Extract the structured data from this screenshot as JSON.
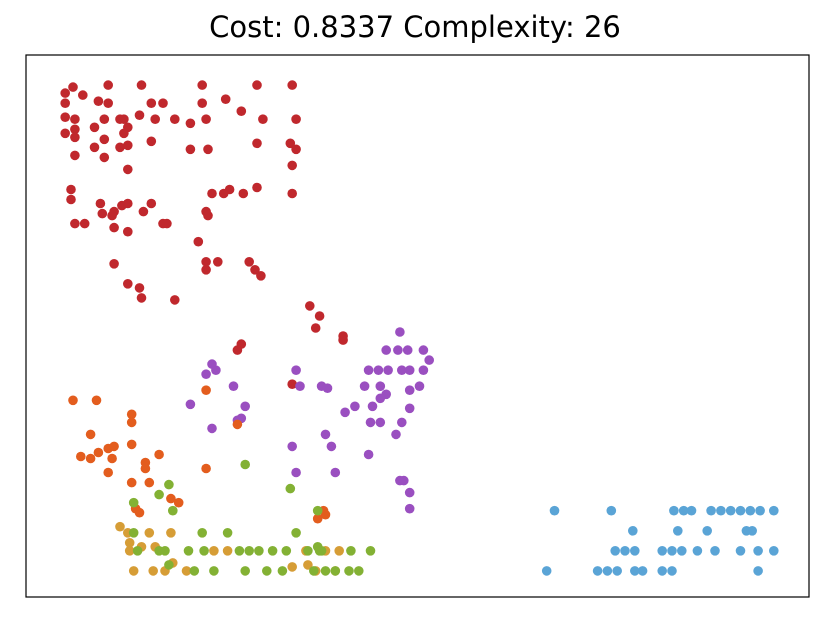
{
  "title": "Cost: 0.8337 Complexity: 26",
  "chart_data": {
    "type": "scatter",
    "title": "Cost: 0.8337 Complexity: 26",
    "xlabel": "",
    "ylabel": "",
    "axes_ticks": "none",
    "xlim": [
      0,
      40
    ],
    "ylim": [
      0,
      27
    ],
    "colors": {
      "red": "#c0282d",
      "purple": "#9a4fc0",
      "orange": "#e35d1e",
      "gold": "#d69d36",
      "green": "#83b134",
      "blue": "#5aa4d6"
    },
    "series": [
      {
        "color_key": "red",
        "points": [
          [
            2,
            25.1
          ],
          [
            2,
            24.6
          ],
          [
            2.4,
            25.4
          ],
          [
            2.9,
            25
          ],
          [
            3.7,
            24.7
          ],
          [
            4.2,
            25.5
          ],
          [
            4.2,
            24.6
          ],
          [
            5.9,
            25.5
          ],
          [
            6.4,
            24.6
          ],
          [
            7,
            24.6
          ],
          [
            9,
            25.5
          ],
          [
            9,
            24.6
          ],
          [
            10.2,
            24.8
          ],
          [
            11.8,
            25.5
          ],
          [
            13.6,
            25.5
          ],
          [
            2,
            23.9
          ],
          [
            2.5,
            23.8
          ],
          [
            4,
            23.8
          ],
          [
            4.8,
            23.8
          ],
          [
            5,
            23.8
          ],
          [
            5.2,
            23.4
          ],
          [
            5.8,
            24
          ],
          [
            6.6,
            23.8
          ],
          [
            7.6,
            23.8
          ],
          [
            8.4,
            23.6
          ],
          [
            9.2,
            23.8
          ],
          [
            11,
            24.2
          ],
          [
            12.1,
            23.8
          ],
          [
            13.8,
            23.8
          ],
          [
            2,
            23.1
          ],
          [
            2.5,
            23.3
          ],
          [
            2.5,
            22.9
          ],
          [
            3.5,
            23.4
          ],
          [
            4,
            22.8
          ],
          [
            5,
            23.1
          ],
          [
            5.2,
            22.5
          ],
          [
            6.4,
            22.7
          ],
          [
            8.4,
            22.3
          ],
          [
            9.3,
            22.3
          ],
          [
            11.8,
            22.6
          ],
          [
            13.5,
            22.6
          ],
          [
            13.8,
            22.3
          ],
          [
            2.5,
            22
          ],
          [
            3.5,
            22.4
          ],
          [
            4,
            21.9
          ],
          [
            4.8,
            22.4
          ],
          [
            5.2,
            21.3
          ],
          [
            13.6,
            21.5
          ],
          [
            2.3,
            20.3
          ],
          [
            2.3,
            19.8
          ],
          [
            3.8,
            19.6
          ],
          [
            4.5,
            19.2
          ],
          [
            4.9,
            19.5
          ],
          [
            5.2,
            19.6
          ],
          [
            6,
            19.2
          ],
          [
            6.4,
            19.6
          ],
          [
            9.2,
            19.2
          ],
          [
            9.3,
            19
          ],
          [
            10.4,
            20.3
          ],
          [
            11.1,
            20.1
          ],
          [
            11.8,
            20.4
          ],
          [
            13.6,
            20.1
          ],
          [
            3,
            18.6
          ],
          [
            3.9,
            19.1
          ],
          [
            4.4,
            19
          ],
          [
            4.5,
            18.4
          ],
          [
            5.2,
            18.2
          ],
          [
            2.5,
            18.6
          ],
          [
            7,
            18.6
          ],
          [
            7.2,
            18.6
          ],
          [
            9.5,
            20.1
          ],
          [
            10.1,
            20.1
          ],
          [
            8.8,
            17.7
          ],
          [
            9.2,
            16.7
          ],
          [
            9.8,
            16.7
          ],
          [
            9.2,
            16.3
          ],
          [
            11.4,
            16.7
          ],
          [
            11.7,
            16.3
          ],
          [
            12,
            16
          ],
          [
            4.5,
            16.6
          ],
          [
            5.2,
            15.6
          ],
          [
            5.8,
            15.4
          ],
          [
            5.9,
            14.9
          ],
          [
            7.6,
            14.8
          ],
          [
            14.5,
            14.5
          ],
          [
            15,
            14
          ],
          [
            14.8,
            13.4
          ],
          [
            16.2,
            13
          ],
          [
            16.2,
            12.8
          ],
          [
            11,
            12.6
          ],
          [
            10.8,
            12.3
          ],
          [
            13.6,
            10.6
          ]
        ]
      },
      {
        "color_key": "purple",
        "points": [
          [
            19.1,
            13.2
          ],
          [
            18.4,
            12.3
          ],
          [
            19,
            12.3
          ],
          [
            19.5,
            12.3
          ],
          [
            20.3,
            12.3
          ],
          [
            20.6,
            11.8
          ],
          [
            9.5,
            11.6
          ],
          [
            9.7,
            11.3
          ],
          [
            13.8,
            11.3
          ],
          [
            17.5,
            11.3
          ],
          [
            18,
            11.3
          ],
          [
            18.5,
            11.3
          ],
          [
            19.2,
            11.3
          ],
          [
            19.6,
            11.3
          ],
          [
            20.3,
            11.3
          ],
          [
            9.2,
            11.1
          ],
          [
            10.6,
            10.5
          ],
          [
            15.1,
            10.5
          ],
          [
            14,
            10.5
          ],
          [
            15.4,
            10.4
          ],
          [
            17.3,
            10.5
          ],
          [
            18.1,
            10.5
          ],
          [
            18.4,
            10.1
          ],
          [
            19.6,
            10.3
          ],
          [
            20.1,
            10.5
          ],
          [
            18.1,
            9.9
          ],
          [
            8.4,
            9.6
          ],
          [
            11.2,
            9.5
          ],
          [
            16.3,
            9.2
          ],
          [
            16.8,
            9.5
          ],
          [
            17.7,
            9.5
          ],
          [
            19.6,
            9.4
          ],
          [
            11,
            8.9
          ],
          [
            17.6,
            8.7
          ],
          [
            18.1,
            8.7
          ],
          [
            19.2,
            8.7
          ],
          [
            15.3,
            8.1
          ],
          [
            18.9,
            8.1
          ],
          [
            9.5,
            8.4
          ],
          [
            10.8,
            8.8
          ],
          [
            13.6,
            7.5
          ],
          [
            15.6,
            7.5
          ],
          [
            17.5,
            7.1
          ],
          [
            13.8,
            6.2
          ],
          [
            15.8,
            6.2
          ],
          [
            19.1,
            5.8
          ],
          [
            19.3,
            5.8
          ],
          [
            19.6,
            5.2
          ],
          [
            19.6,
            4.4
          ]
        ]
      },
      {
        "color_key": "orange",
        "points": [
          [
            2.4,
            9.8
          ],
          [
            3.6,
            9.8
          ],
          [
            5.4,
            9.1
          ],
          [
            5.4,
            8.7
          ],
          [
            3.3,
            8.1
          ],
          [
            2.8,
            7
          ],
          [
            3.7,
            7.2
          ],
          [
            4.2,
            7.4
          ],
          [
            4.5,
            7.5
          ],
          [
            5.4,
            7.6
          ],
          [
            3.3,
            6.9
          ],
          [
            4.4,
            6.9
          ],
          [
            6.1,
            6.7
          ],
          [
            6.1,
            6.4
          ],
          [
            6.8,
            7.1
          ],
          [
            9.2,
            10.3
          ],
          [
            9.2,
            6.4
          ],
          [
            10.8,
            8.6
          ],
          [
            5.4,
            5.7
          ],
          [
            6.3,
            5.7
          ],
          [
            7.4,
            4.9
          ],
          [
            7.8,
            4.7
          ],
          [
            4.2,
            6.2
          ],
          [
            5.6,
            4.4
          ],
          [
            5.8,
            4.2
          ],
          [
            15.2,
            4.3
          ],
          [
            15.3,
            4.1
          ],
          [
            14.9,
            3.9
          ]
        ]
      },
      {
        "color_key": "gold",
        "points": [
          [
            4.8,
            3.5
          ],
          [
            5.2,
            3.2
          ],
          [
            6.3,
            3.2
          ],
          [
            7.4,
            3.2
          ],
          [
            5.3,
            2.7
          ],
          [
            5.3,
            2.3
          ],
          [
            5.9,
            2.5
          ],
          [
            6.6,
            2.5
          ],
          [
            9.6,
            2.3
          ],
          [
            10.3,
            2.3
          ],
          [
            14.3,
            2.3
          ],
          [
            16,
            2.3
          ],
          [
            15.3,
            2.3
          ],
          [
            14.4,
            1.6
          ],
          [
            7.5,
            1.7
          ],
          [
            8.2,
            1.3
          ],
          [
            5.5,
            1.3
          ],
          [
            6.5,
            1.3
          ],
          [
            7.1,
            1.3
          ],
          [
            14.8,
            1.3
          ],
          [
            13.6,
            1.5
          ],
          [
            15.8,
            1.3
          ]
        ]
      },
      {
        "color_key": "green",
        "points": [
          [
            11.2,
            6.6
          ],
          [
            7.3,
            5.6
          ],
          [
            13.5,
            5.4
          ],
          [
            6.8,
            5.1
          ],
          [
            5.5,
            4.7
          ],
          [
            7.5,
            4.3
          ],
          [
            14.9,
            4.3
          ],
          [
            5.5,
            3.2
          ],
          [
            6.8,
            2.3
          ],
          [
            9,
            3.2
          ],
          [
            10.3,
            3.2
          ],
          [
            13.8,
            3.2
          ],
          [
            14.9,
            2.5
          ],
          [
            15,
            2.3
          ],
          [
            9.1,
            2.3
          ],
          [
            10.9,
            2.3
          ],
          [
            11.4,
            2.3
          ],
          [
            11.9,
            2.3
          ],
          [
            12.6,
            2.3
          ],
          [
            13.3,
            2.3
          ],
          [
            14.4,
            2.3
          ],
          [
            15.1,
            2.3
          ],
          [
            16.6,
            2.3
          ],
          [
            17.6,
            2.3
          ],
          [
            7.1,
            2.3
          ],
          [
            5.7,
            2.3
          ],
          [
            8.3,
            2.3
          ],
          [
            7.3,
            1.6
          ],
          [
            8.6,
            1.3
          ],
          [
            9.6,
            1.3
          ],
          [
            11.2,
            1.3
          ],
          [
            12.3,
            1.3
          ],
          [
            13.1,
            1.3
          ],
          [
            14.7,
            1.3
          ],
          [
            15.3,
            1.3
          ],
          [
            15.8,
            1.3
          ],
          [
            16.5,
            1.3
          ],
          [
            17,
            1.3
          ]
        ]
      },
      {
        "color_key": "blue",
        "points": [
          [
            27,
            4.3
          ],
          [
            29.9,
            4.3
          ],
          [
            33.1,
            4.3
          ],
          [
            33.6,
            4.3
          ],
          [
            34,
            4.3
          ],
          [
            35,
            4.3
          ],
          [
            35.5,
            4.3
          ],
          [
            36,
            4.3
          ],
          [
            36.5,
            4.3
          ],
          [
            37,
            4.3
          ],
          [
            37.5,
            4.3
          ],
          [
            38.2,
            4.3
          ],
          [
            31,
            3.3
          ],
          [
            33.3,
            3.3
          ],
          [
            34.8,
            3.3
          ],
          [
            36.8,
            3.3
          ],
          [
            37.1,
            3.3
          ],
          [
            30.1,
            2.3
          ],
          [
            30.6,
            2.3
          ],
          [
            31.1,
            2.3
          ],
          [
            32.5,
            2.3
          ],
          [
            33,
            2.3
          ],
          [
            33.5,
            2.3
          ],
          [
            34.3,
            2.3
          ],
          [
            35.2,
            2.3
          ],
          [
            36.5,
            2.3
          ],
          [
            37.4,
            2.3
          ],
          [
            38.2,
            2.3
          ],
          [
            26.6,
            1.3
          ],
          [
            29.2,
            1.3
          ],
          [
            29.7,
            1.3
          ],
          [
            30.2,
            1.3
          ],
          [
            31.1,
            1.3
          ],
          [
            31.5,
            1.3
          ],
          [
            32.5,
            1.3
          ],
          [
            33,
            1.3
          ],
          [
            37.4,
            1.3
          ]
        ]
      }
    ]
  }
}
